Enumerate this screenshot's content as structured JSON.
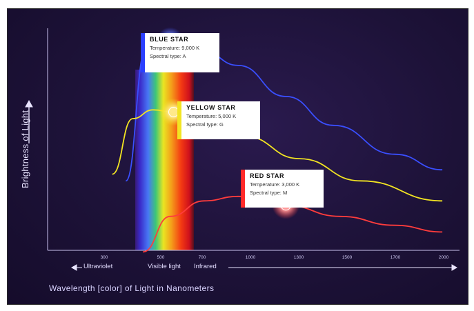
{
  "chart_data": {
    "type": "line",
    "xlabel": "Wavelength [color] of Light in Nanometers",
    "ylabel": "Brightness of Light",
    "x_ticks": [
      "300",
      "500",
      "700",
      "1000",
      "1300",
      "1500",
      "1700",
      "2000"
    ],
    "regions": [
      "Ultraviolet",
      "Visible light",
      "Infrared"
    ],
    "series": [
      {
        "name": "BLUE STAR",
        "color": "#3a4fff",
        "x": [
          165,
          195,
          230,
          280,
          330,
          400,
          470,
          560,
          630
        ],
        "y": [
          35,
          95,
          98,
          93,
          87,
          73,
          60,
          47,
          40
        ]
      },
      {
        "name": "YELLOW STAR",
        "color": "#f2e422",
        "x": [
          145,
          175,
          205,
          235,
          280,
          340,
          420,
          510,
          630
        ],
        "y": [
          38,
          63,
          67,
          66,
          62,
          55,
          45,
          35,
          26
        ]
      },
      {
        "name": "RED STAR",
        "color": "#ff3c3c",
        "x": [
          190,
          230,
          280,
          330,
          400,
          480,
          560,
          630
        ],
        "y": [
          3,
          19,
          26,
          28,
          24,
          19,
          15,
          12
        ]
      }
    ],
    "callouts": [
      {
        "title": "BLUE STAR",
        "lines": [
          "Temperature: 9,000 K",
          "Spectral type: A"
        ],
        "star_color": "#8ea6ff"
      },
      {
        "title": "YELLOW STAR",
        "lines": [
          "Temperature: 5,000 K",
          "Spectral type: G"
        ],
        "star_color": "#ffe98a"
      },
      {
        "title": "RED STAR",
        "lines": [
          "Temperature: 3,000 K",
          "Spectral type: M"
        ],
        "star_color": "#ff9a9a"
      }
    ]
  }
}
